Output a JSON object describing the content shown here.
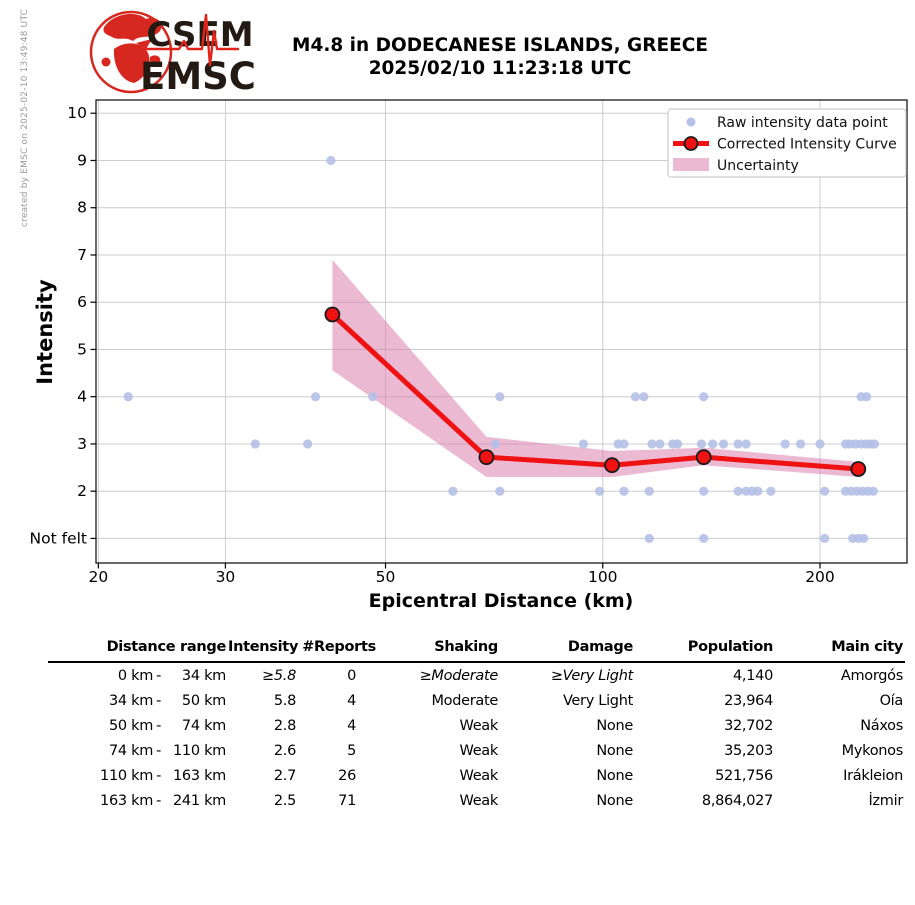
{
  "credit": "created by EMSC on 2025-02-10 13:49:48 UTC",
  "logo": {
    "line1": "CSEM",
    "line2": "EMSC"
  },
  "title": {
    "line1": "M4.8 in DODECANESE ISLANDS, GREECE",
    "line2": "2025/02/10 11:23:18 UTC"
  },
  "colors": {
    "raw_point": "#b4c0e7",
    "curve_red": "#ee1212",
    "uncertainty_pink": "#dd7fae",
    "grid": "#cccccc",
    "spine": "#1a1a1a",
    "logo_red": "#d7281f",
    "logo_text": "#241a14",
    "credit_gray": "#9a9aa2"
  },
  "chart_data": {
    "type": "scatter",
    "xlabel": "Epicentral Distance (km)",
    "ylabel": "Intensity",
    "xscale": "log",
    "xlim": [
      19.85,
      264
    ],
    "ylim": [
      0.48,
      10.28
    ],
    "grid": true,
    "legend_position": "upper right",
    "xticks": [
      {
        "value": 20,
        "label": "20"
      },
      {
        "value": 30,
        "label": "30"
      },
      {
        "value": 50,
        "label": "50"
      },
      {
        "value": 100,
        "label": "100"
      },
      {
        "value": 200,
        "label": "200"
      }
    ],
    "yticks": [
      {
        "value": 1,
        "label": "Not felt"
      },
      {
        "value": 2,
        "label": "2"
      },
      {
        "value": 3,
        "label": "3"
      },
      {
        "value": 4,
        "label": "4"
      },
      {
        "value": 5,
        "label": "5"
      },
      {
        "value": 6,
        "label": "6"
      },
      {
        "value": 7,
        "label": "7"
      },
      {
        "value": 8,
        "label": "8"
      },
      {
        "value": 9,
        "label": "9"
      },
      {
        "value": 10,
        "label": "10"
      }
    ],
    "series": [
      {
        "name": "Raw intensity data point",
        "type": "scatter",
        "points": [
          [
            42,
            9
          ],
          [
            22,
            4
          ],
          [
            40,
            4
          ],
          [
            48,
            4
          ],
          [
            72,
            4
          ],
          [
            111,
            4
          ],
          [
            114,
            4
          ],
          [
            138,
            4
          ],
          [
            228,
            4
          ],
          [
            232,
            4
          ],
          [
            33,
            3
          ],
          [
            39,
            3
          ],
          [
            71,
            3
          ],
          [
            94,
            3
          ],
          [
            105,
            3
          ],
          [
            107,
            3
          ],
          [
            117,
            3
          ],
          [
            120,
            3
          ],
          [
            125,
            3
          ],
          [
            127,
            3
          ],
          [
            137,
            3
          ],
          [
            142,
            3
          ],
          [
            147,
            3
          ],
          [
            154,
            3
          ],
          [
            158,
            3
          ],
          [
            179,
            3
          ],
          [
            188,
            3
          ],
          [
            200,
            3
          ],
          [
            217,
            3
          ],
          [
            220,
            3
          ],
          [
            224,
            3
          ],
          [
            228,
            3
          ],
          [
            232,
            3
          ],
          [
            235,
            3
          ],
          [
            238,
            3
          ],
          [
            62,
            2
          ],
          [
            72,
            2
          ],
          [
            99,
            2
          ],
          [
            107,
            2
          ],
          [
            116,
            2
          ],
          [
            138,
            2
          ],
          [
            154,
            2
          ],
          [
            158,
            2
          ],
          [
            161,
            2
          ],
          [
            164,
            2
          ],
          [
            171,
            2
          ],
          [
            203,
            2
          ],
          [
            217,
            2
          ],
          [
            221,
            2
          ],
          [
            225,
            2
          ],
          [
            229,
            2
          ],
          [
            233,
            2
          ],
          [
            237,
            2
          ],
          [
            116,
            1
          ],
          [
            138,
            1
          ],
          [
            203,
            1
          ],
          [
            222,
            1
          ],
          [
            226,
            1
          ],
          [
            230,
            1
          ]
        ]
      },
      {
        "name": "Corrected Intensity Curve",
        "type": "line",
        "points": [
          [
            42.2,
            5.74
          ],
          [
            69,
            2.72
          ],
          [
            103,
            2.55
          ],
          [
            138,
            2.72
          ],
          [
            226,
            2.47
          ]
        ]
      },
      {
        "name": "Uncertainty",
        "type": "band",
        "points": [
          {
            "x": 42.2,
            "lo": 4.56,
            "hi": 6.9
          },
          {
            "x": 69,
            "lo": 2.3,
            "hi": 3.15
          },
          {
            "x": 103,
            "lo": 2.3,
            "hi": 2.85
          },
          {
            "x": 138,
            "lo": 2.55,
            "hi": 2.92
          },
          {
            "x": 226,
            "lo": 2.3,
            "hi": 2.62
          }
        ]
      }
    ],
    "legend": [
      {
        "label": "Raw intensity data point"
      },
      {
        "label": "Corrected Intensity Curve"
      },
      {
        "label": "Uncertainty"
      }
    ]
  },
  "table": {
    "headers": [
      "Distance range",
      "Intensity",
      "#Reports",
      "Shaking",
      "Damage",
      "Population",
      "Main city"
    ],
    "rows": [
      {
        "range_from": "0 km",
        "range_to": "34 km",
        "intensity": "≥5.8",
        "reports": "0",
        "shaking": "≥Moderate",
        "damage": "≥Very Light",
        "population": "4,140",
        "city": "Amorgós",
        "italic": true
      },
      {
        "range_from": "34 km",
        "range_to": "50 km",
        "intensity": "5.8",
        "reports": "4",
        "shaking": "Moderate",
        "damage": "Very Light",
        "population": "23,964",
        "city": "Oía",
        "italic": false
      },
      {
        "range_from": "50 km",
        "range_to": "74 km",
        "intensity": "2.8",
        "reports": "4",
        "shaking": "Weak",
        "damage": "None",
        "population": "32,702",
        "city": "Náxos",
        "italic": false
      },
      {
        "range_from": "74 km",
        "range_to": "110 km",
        "intensity": "2.6",
        "reports": "5",
        "shaking": "Weak",
        "damage": "None",
        "population": "35,203",
        "city": "Mykonos",
        "italic": false
      },
      {
        "range_from": "110 km",
        "range_to": "163 km",
        "intensity": "2.7",
        "reports": "26",
        "shaking": "Weak",
        "damage": "None",
        "population": "521,756",
        "city": "Irákleion",
        "italic": false
      },
      {
        "range_from": "163 km",
        "range_to": "241 km",
        "intensity": "2.5",
        "reports": "71",
        "shaking": "Weak",
        "damage": "None",
        "population": "8,864,027",
        "city": "İzmir",
        "italic": false
      }
    ]
  }
}
